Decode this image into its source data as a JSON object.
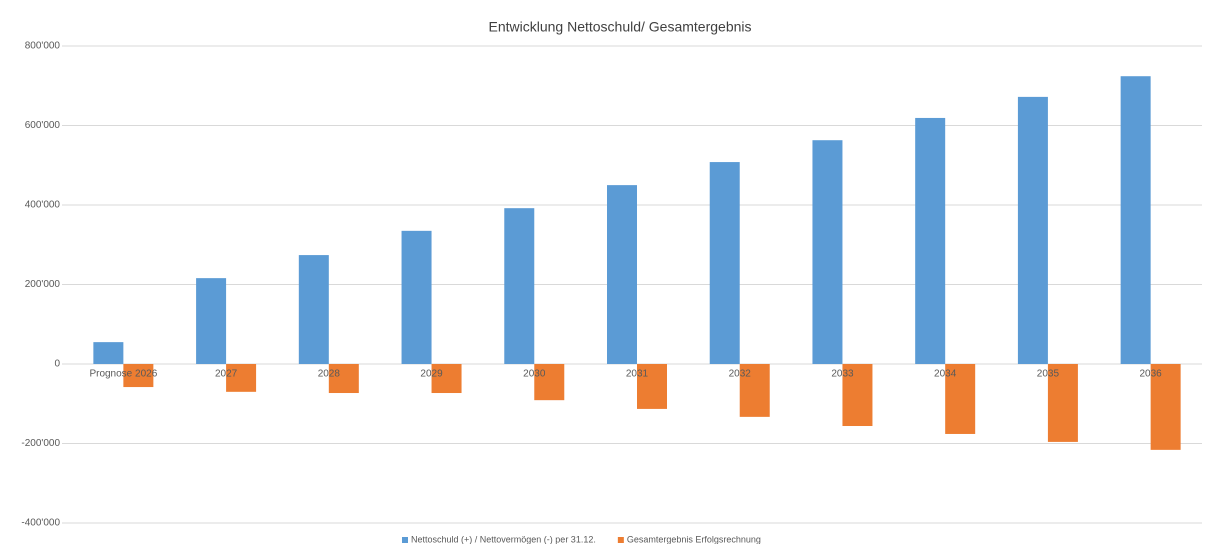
{
  "chart_data": {
    "type": "bar",
    "title": "Entwicklung Nettoschuld/ Gesamtergebnis",
    "categories": [
      "Prognose 2026",
      "2027",
      "2028",
      "2029",
      "2030",
      "2031",
      "2032",
      "2033",
      "2034",
      "2035",
      "2036"
    ],
    "series": [
      {
        "name": "Nettoschuld (+) / Nettovermögen (-) per 31.12.",
        "color": "#5b9bd5",
        "values": [
          55000,
          216000,
          274000,
          335000,
          392000,
          450000,
          508000,
          563000,
          619000,
          672000,
          724000
        ]
      },
      {
        "name": "Gesamtergebnis Erfolgsrechnung",
        "color": "#ed7d31",
        "values": [
          -58000,
          -70000,
          -73000,
          -73000,
          -91000,
          -113000,
          -133000,
          -156000,
          -176000,
          -196000,
          -216000
        ]
      }
    ],
    "ylim": [
      -400000,
      800000
    ],
    "yticks": [
      {
        "value": -400000,
        "label": "-400'000"
      },
      {
        "value": -200000,
        "label": "-200'000"
      },
      0,
      {
        "value": 200000,
        "label": "200'000"
      },
      {
        "value": 400000,
        "label": "400'000"
      },
      {
        "value": 600000,
        "label": "600'000"
      },
      {
        "value": 800000,
        "label": "800'000"
      }
    ],
    "grid": true,
    "legend": "bottom"
  }
}
